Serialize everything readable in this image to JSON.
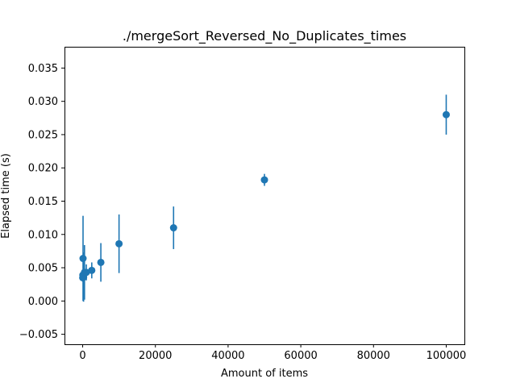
{
  "chart_data": {
    "type": "scatter",
    "title": "./mergeSort_Reversed_No_Duplicates_times",
    "xlabel": "Amount of items",
    "ylabel": "Elapsed time (s)",
    "xlim": [
      -5000,
      105000
    ],
    "ylim": [
      -0.0065,
      0.0382
    ],
    "xticks": [
      0,
      20000,
      40000,
      60000,
      80000,
      100000
    ],
    "xtick_labels": [
      "0",
      "20000",
      "40000",
      "60000",
      "80000",
      "100000"
    ],
    "yticks": [
      -0.005,
      0.0,
      0.005,
      0.01,
      0.015,
      0.02,
      0.025,
      0.03,
      0.035
    ],
    "ytick_labels": [
      "−0.005",
      "0.000",
      "0.005",
      "0.010",
      "0.015",
      "0.020",
      "0.025",
      "0.030",
      "0.035"
    ],
    "grid": false,
    "series": [
      {
        "color": "#1f77b4",
        "points": [
          {
            "x": 10,
            "y": 0.0035,
            "err": 0.0006
          },
          {
            "x": 50,
            "y": 0.0039,
            "err": 0.0008
          },
          {
            "x": 100,
            "y": 0.0064,
            "err": 0.0064
          },
          {
            "x": 250,
            "y": 0.0036,
            "err": 0.0037
          },
          {
            "x": 500,
            "y": 0.0043,
            "err": 0.0041
          },
          {
            "x": 1000,
            "y": 0.0043,
            "err": 0.0012
          },
          {
            "x": 2500,
            "y": 0.0046,
            "err": 0.0012
          },
          {
            "x": 5000,
            "y": 0.0058,
            "err": 0.0029
          },
          {
            "x": 10000,
            "y": 0.0086,
            "err": 0.0044
          },
          {
            "x": 25000,
            "y": 0.011,
            "err": 0.0032
          },
          {
            "x": 50000,
            "y": 0.0182,
            "err": 0.0009
          },
          {
            "x": 100000,
            "y": 0.028,
            "err": 0.003
          }
        ]
      }
    ]
  }
}
